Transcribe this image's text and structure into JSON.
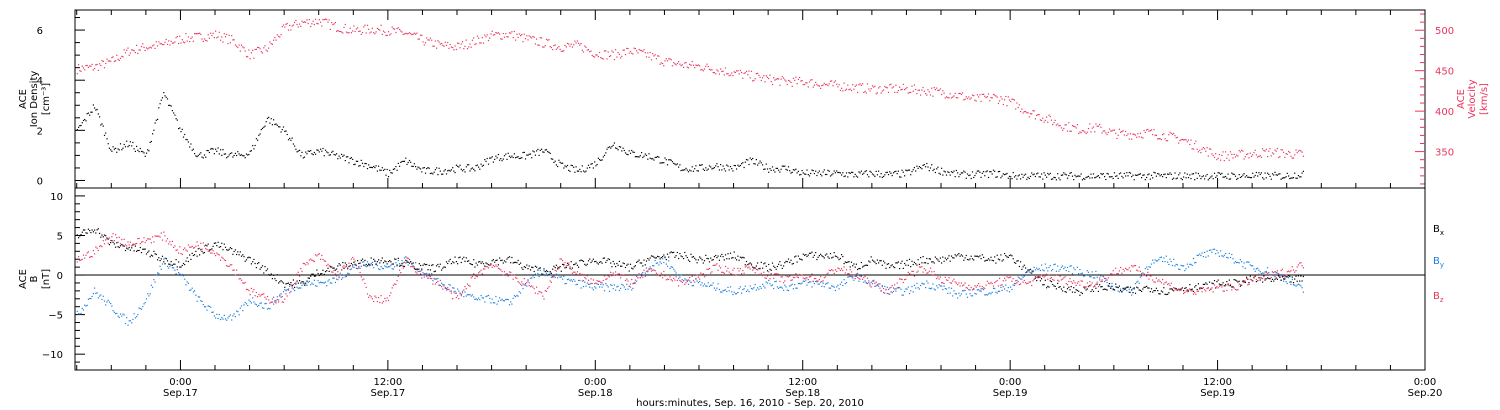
{
  "colors": {
    "black": "#000000",
    "pink": "#e8365e",
    "blue": "#1e7fe0"
  },
  "x_axis": {
    "tick_labels": [
      {
        "time": "0:00",
        "date": "Sep.17",
        "hours": 24
      },
      {
        "time": "12:00",
        "date": "Sep.17",
        "hours": 36
      },
      {
        "time": "0:00",
        "date": "Sep.18",
        "hours": 48
      },
      {
        "time": "12:00",
        "date": "Sep.18",
        "hours": 60
      },
      {
        "time": "0:00",
        "date": "Sep.19",
        "hours": 72
      },
      {
        "time": "12:00",
        "date": "Sep.19",
        "hours": 84
      },
      {
        "time": "0:00",
        "date": "Sep.20",
        "hours": 96
      }
    ],
    "title": "hours:minutes, Sep. 16, 2010 - Sep. 20, 2010"
  },
  "chart_data": [
    {
      "type": "scatter",
      "panel": "top",
      "xlim_hours": [
        17.9,
        96
      ],
      "left_axis": {
        "label_line1": "ACE",
        "label_line2": "Ion Density",
        "label_line3": "[cm⁻³]",
        "ylim": [
          -0.3,
          6.8
        ],
        "ticks": [
          0,
          2,
          4,
          6
        ],
        "tick_labels": [
          "0",
          "2",
          "4",
          "6"
        ]
      },
      "right_axis": {
        "label_line1": "ACE",
        "label_line2": "Velocity",
        "label_line3": "[km/s]",
        "ylim": [
          305,
          525
        ],
        "ticks": [
          350,
          400,
          450,
          500
        ],
        "tick_labels": [
          "350",
          "400",
          "450",
          "500"
        ]
      },
      "series": [
        {
          "color": "#000000",
          "axis": "left",
          "x": [
            18,
            19,
            20,
            21,
            22,
            23,
            24,
            25,
            26,
            27,
            28,
            29,
            30,
            31,
            32,
            33,
            34,
            35,
            36,
            37,
            38,
            39,
            40,
            41,
            42,
            43,
            44,
            45,
            46,
            47,
            48,
            49,
            50,
            51,
            52,
            53,
            54,
            55,
            56,
            57,
            58,
            59,
            60,
            61,
            62,
            63,
            64,
            65,
            66,
            67,
            68,
            69,
            70,
            71,
            72,
            73,
            74,
            75,
            76,
            77,
            78,
            79,
            80,
            81,
            82,
            83,
            84,
            85,
            86,
            87,
            88,
            89
          ],
          "y": [
            2.0,
            3.0,
            1.2,
            1.5,
            1.0,
            3.5,
            2.0,
            1.0,
            1.2,
            1.0,
            1.1,
            2.5,
            2.0,
            1.0,
            1.2,
            1.0,
            0.8,
            0.6,
            0.3,
            0.8,
            0.4,
            0.4,
            0.5,
            0.5,
            0.9,
            1.0,
            1.0,
            1.2,
            0.6,
            0.4,
            0.7,
            1.5,
            1.1,
            1.0,
            0.8,
            0.5,
            0.5,
            0.6,
            0.5,
            0.8,
            0.5,
            0.5,
            0.3,
            0.3,
            0.3,
            0.25,
            0.3,
            0.25,
            0.3,
            0.6,
            0.4,
            0.25,
            0.25,
            0.3,
            0.2,
            0.2,
            0.2,
            0.2,
            0.2,
            0.2,
            0.2,
            0.2,
            0.2,
            0.2,
            0.2,
            0.2,
            0.2,
            0.2,
            0.2,
            0.2,
            0.2,
            0.3
          ]
        },
        {
          "color": "#e8365e",
          "axis": "right",
          "x": [
            18,
            19,
            20,
            21,
            22,
            23,
            24,
            25,
            26,
            27,
            28,
            29,
            30,
            31,
            32,
            33,
            34,
            35,
            36,
            37,
            38,
            39,
            40,
            41,
            42,
            43,
            44,
            45,
            46,
            47,
            48,
            49,
            50,
            51,
            52,
            53,
            54,
            55,
            56,
            57,
            58,
            59,
            60,
            61,
            62,
            63,
            64,
            65,
            66,
            67,
            68,
            69,
            70,
            71,
            72,
            73,
            74,
            75,
            76,
            77,
            78,
            79,
            80,
            81,
            82,
            83,
            84,
            85,
            86,
            87,
            88,
            89
          ],
          "y": [
            453,
            455,
            462,
            475,
            480,
            483,
            490,
            492,
            495,
            488,
            470,
            478,
            503,
            510,
            512,
            505,
            500,
            502,
            500,
            497,
            488,
            482,
            480,
            487,
            494,
            496,
            490,
            485,
            480,
            482,
            472,
            470,
            475,
            470,
            462,
            458,
            456,
            452,
            448,
            444,
            440,
            437,
            437,
            434,
            432,
            430,
            428,
            428,
            428,
            426,
            424,
            420,
            415,
            418,
            412,
            400,
            392,
            383,
            378,
            380,
            373,
            372,
            374,
            370,
            365,
            355,
            345,
            346,
            348,
            350,
            348,
            347
          ]
        }
      ]
    },
    {
      "type": "scatter",
      "panel": "bottom",
      "xlim_hours": [
        17.9,
        96
      ],
      "left_axis": {
        "label_line1": "ACE",
        "label_line2": "B",
        "label_line3": "[nT]",
        "ylim": [
          -12,
          11
        ],
        "ticks": [
          -10,
          -5,
          0,
          5,
          10
        ],
        "tick_labels": [
          "−10",
          "−5",
          "0",
          "5",
          "10"
        ]
      },
      "series": [
        {
          "name": "B",
          "subscript": "x",
          "color": "#000000",
          "x": [
            18,
            19,
            20,
            21,
            22,
            23,
            24,
            25,
            26,
            27,
            28,
            29,
            30,
            31,
            32,
            33,
            34,
            35,
            36,
            37,
            38,
            39,
            40,
            41,
            42,
            43,
            44,
            45,
            46,
            47,
            48,
            49,
            50,
            51,
            52,
            53,
            54,
            55,
            56,
            57,
            58,
            59,
            60,
            61,
            62,
            63,
            64,
            65,
            66,
            67,
            68,
            69,
            70,
            71,
            72,
            73,
            74,
            75,
            76,
            77,
            78,
            79,
            80,
            81,
            82,
            83,
            84,
            85,
            86,
            87,
            88,
            89
          ],
          "y": [
            5.0,
            6.0,
            4.0,
            3.5,
            3.0,
            2.0,
            1.5,
            3.0,
            4.0,
            3.0,
            2.0,
            0.5,
            -1.0,
            -1.0,
            0.5,
            1.0,
            1.5,
            1.8,
            2.0,
            1.5,
            1.0,
            1.0,
            2.0,
            1.5,
            1.8,
            2.0,
            1.0,
            0.5,
            1.0,
            1.5,
            2.0,
            1.5,
            1.0,
            2.0,
            2.5,
            2.5,
            2.0,
            2.2,
            2.5,
            1.5,
            1.0,
            1.5,
            2.5,
            2.5,
            2.5,
            1.0,
            2.0,
            1.0,
            1.5,
            2.0,
            2.0,
            2.5,
            2.3,
            2.0,
            2.5,
            0.5,
            -1.0,
            -1.5,
            -2.0,
            -1.5,
            -1.5,
            -2.0,
            -1.5,
            -2.0,
            -1.5,
            -1.5,
            -1.0,
            -1.0,
            -0.5,
            -0.5,
            -0.5,
            -0.5
          ]
        },
        {
          "name": "B",
          "subscript": "y",
          "color": "#1e7fe0",
          "x": [
            18,
            19,
            20,
            21,
            22,
            23,
            24,
            25,
            26,
            27,
            28,
            29,
            30,
            31,
            32,
            33,
            34,
            35,
            36,
            37,
            38,
            39,
            40,
            41,
            42,
            43,
            44,
            45,
            46,
            47,
            48,
            49,
            50,
            51,
            52,
            53,
            54,
            55,
            56,
            57,
            58,
            59,
            60,
            61,
            62,
            63,
            64,
            65,
            66,
            67,
            68,
            69,
            70,
            71,
            72,
            73,
            74,
            75,
            76,
            77,
            78,
            79,
            80,
            81,
            82,
            83,
            84,
            85,
            86,
            87,
            88,
            89
          ],
          "y": [
            -5.0,
            -2.0,
            -4.0,
            -6.0,
            -3.0,
            2.0,
            0.0,
            -3.0,
            -5.0,
            -5.5,
            -3.0,
            -4.0,
            -2.0,
            -1.0,
            -1.0,
            -0.5,
            1.0,
            1.5,
            1.0,
            2.0,
            0.5,
            -1.0,
            -2.0,
            -3.0,
            -3.0,
            -3.5,
            -1.0,
            0.5,
            -0.5,
            -1.0,
            -1.5,
            -1.5,
            -1.5,
            1.0,
            2.0,
            -0.5,
            -1.0,
            -1.5,
            -2.0,
            -1.5,
            -1.0,
            -1.5,
            -1.0,
            -1.0,
            -1.5,
            0.0,
            -1.0,
            -2.0,
            -2.0,
            -1.0,
            -1.5,
            -2.5,
            -2.0,
            -2.0,
            -1.5,
            0.5,
            1.0,
            1.0,
            0.5,
            0.0,
            -1.5,
            -2.0,
            1.5,
            2.0,
            1.0,
            2.5,
            3.0,
            2.0,
            1.0,
            0.5,
            -0.5,
            -2.0
          ]
        },
        {
          "name": "B",
          "subscript": "z",
          "color": "#e8365e",
          "x": [
            18,
            19,
            20,
            21,
            22,
            23,
            24,
            25,
            26,
            27,
            28,
            29,
            30,
            31,
            32,
            33,
            34,
            35,
            36,
            37,
            38,
            39,
            40,
            41,
            42,
            43,
            44,
            45,
            46,
            47,
            48,
            49,
            50,
            51,
            52,
            53,
            54,
            55,
            56,
            57,
            58,
            59,
            60,
            61,
            62,
            63,
            64,
            65,
            66,
            67,
            68,
            69,
            70,
            71,
            72,
            73,
            74,
            75,
            76,
            77,
            78,
            79,
            80,
            81,
            82,
            83,
            84,
            85,
            86,
            87,
            88,
            89
          ],
          "y": [
            2.0,
            3.0,
            5.0,
            4.0,
            4.5,
            5.0,
            3.0,
            4.0,
            3.0,
            1.0,
            -2.0,
            -3.0,
            -3.0,
            1.0,
            2.5,
            0.0,
            2.0,
            -3.0,
            -3.0,
            2.0,
            0.0,
            -1.0,
            -3.0,
            0.0,
            1.5,
            0.0,
            -1.0,
            -2.5,
            2.0,
            0.0,
            -1.0,
            0.5,
            -1.0,
            0.5,
            0.0,
            -1.0,
            0.0,
            1.0,
            0.5,
            1.0,
            0.0,
            -0.5,
            0.0,
            -0.5,
            1.0,
            0.0,
            -1.0,
            -2.0,
            0.0,
            1.0,
            -0.5,
            -1.0,
            -1.5,
            -1.0,
            -0.5,
            -1.0,
            0.0,
            -0.5,
            -1.0,
            -1.0,
            0.5,
            1.0,
            0.0,
            -1.0,
            -2.0,
            -2.0,
            -1.5,
            -1.5,
            -0.5,
            0.0,
            0.5,
            1.5
          ]
        }
      ]
    }
  ]
}
